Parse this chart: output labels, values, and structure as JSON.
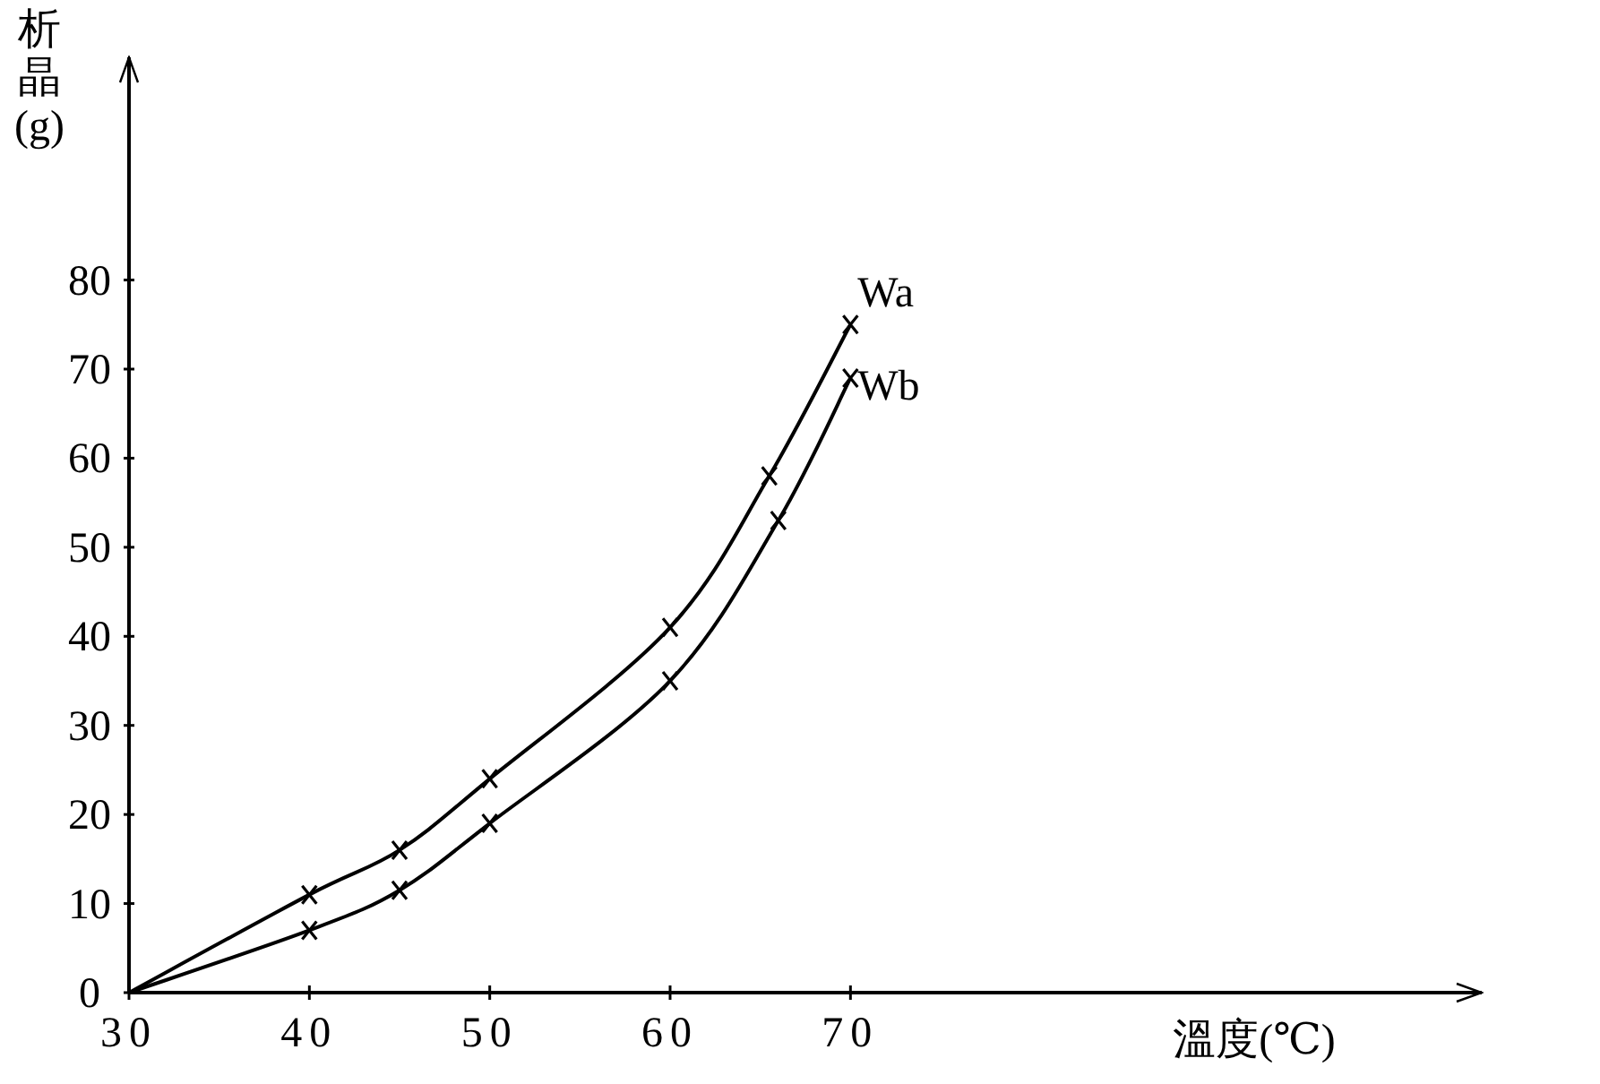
{
  "chart_data": {
    "type": "line",
    "xlabel": "溫度(℃)",
    "ylabel": "析晶(g)",
    "x": [
      30,
      40,
      45,
      50,
      60,
      65.5,
      70
    ],
    "series": [
      {
        "name": "Wa",
        "color": "#000000",
        "values": [
          0,
          11,
          16,
          24,
          41,
          58,
          75
        ]
      },
      {
        "name": "Wb",
        "color": "#000000",
        "x": [
          30,
          40,
          45,
          50,
          60,
          66,
          70
        ],
        "values": [
          0,
          7,
          11.5,
          19,
          35,
          53,
          69
        ]
      }
    ],
    "xlim": [
      30,
      105
    ],
    "ylim": [
      0,
      105
    ],
    "xticks": [
      30,
      40,
      50,
      60,
      70
    ],
    "yticks": [
      0,
      10,
      20,
      30,
      40,
      50,
      60,
      70,
      80
    ],
    "grid": false,
    "legend": false,
    "marker": "cross",
    "line_style": "solid"
  }
}
